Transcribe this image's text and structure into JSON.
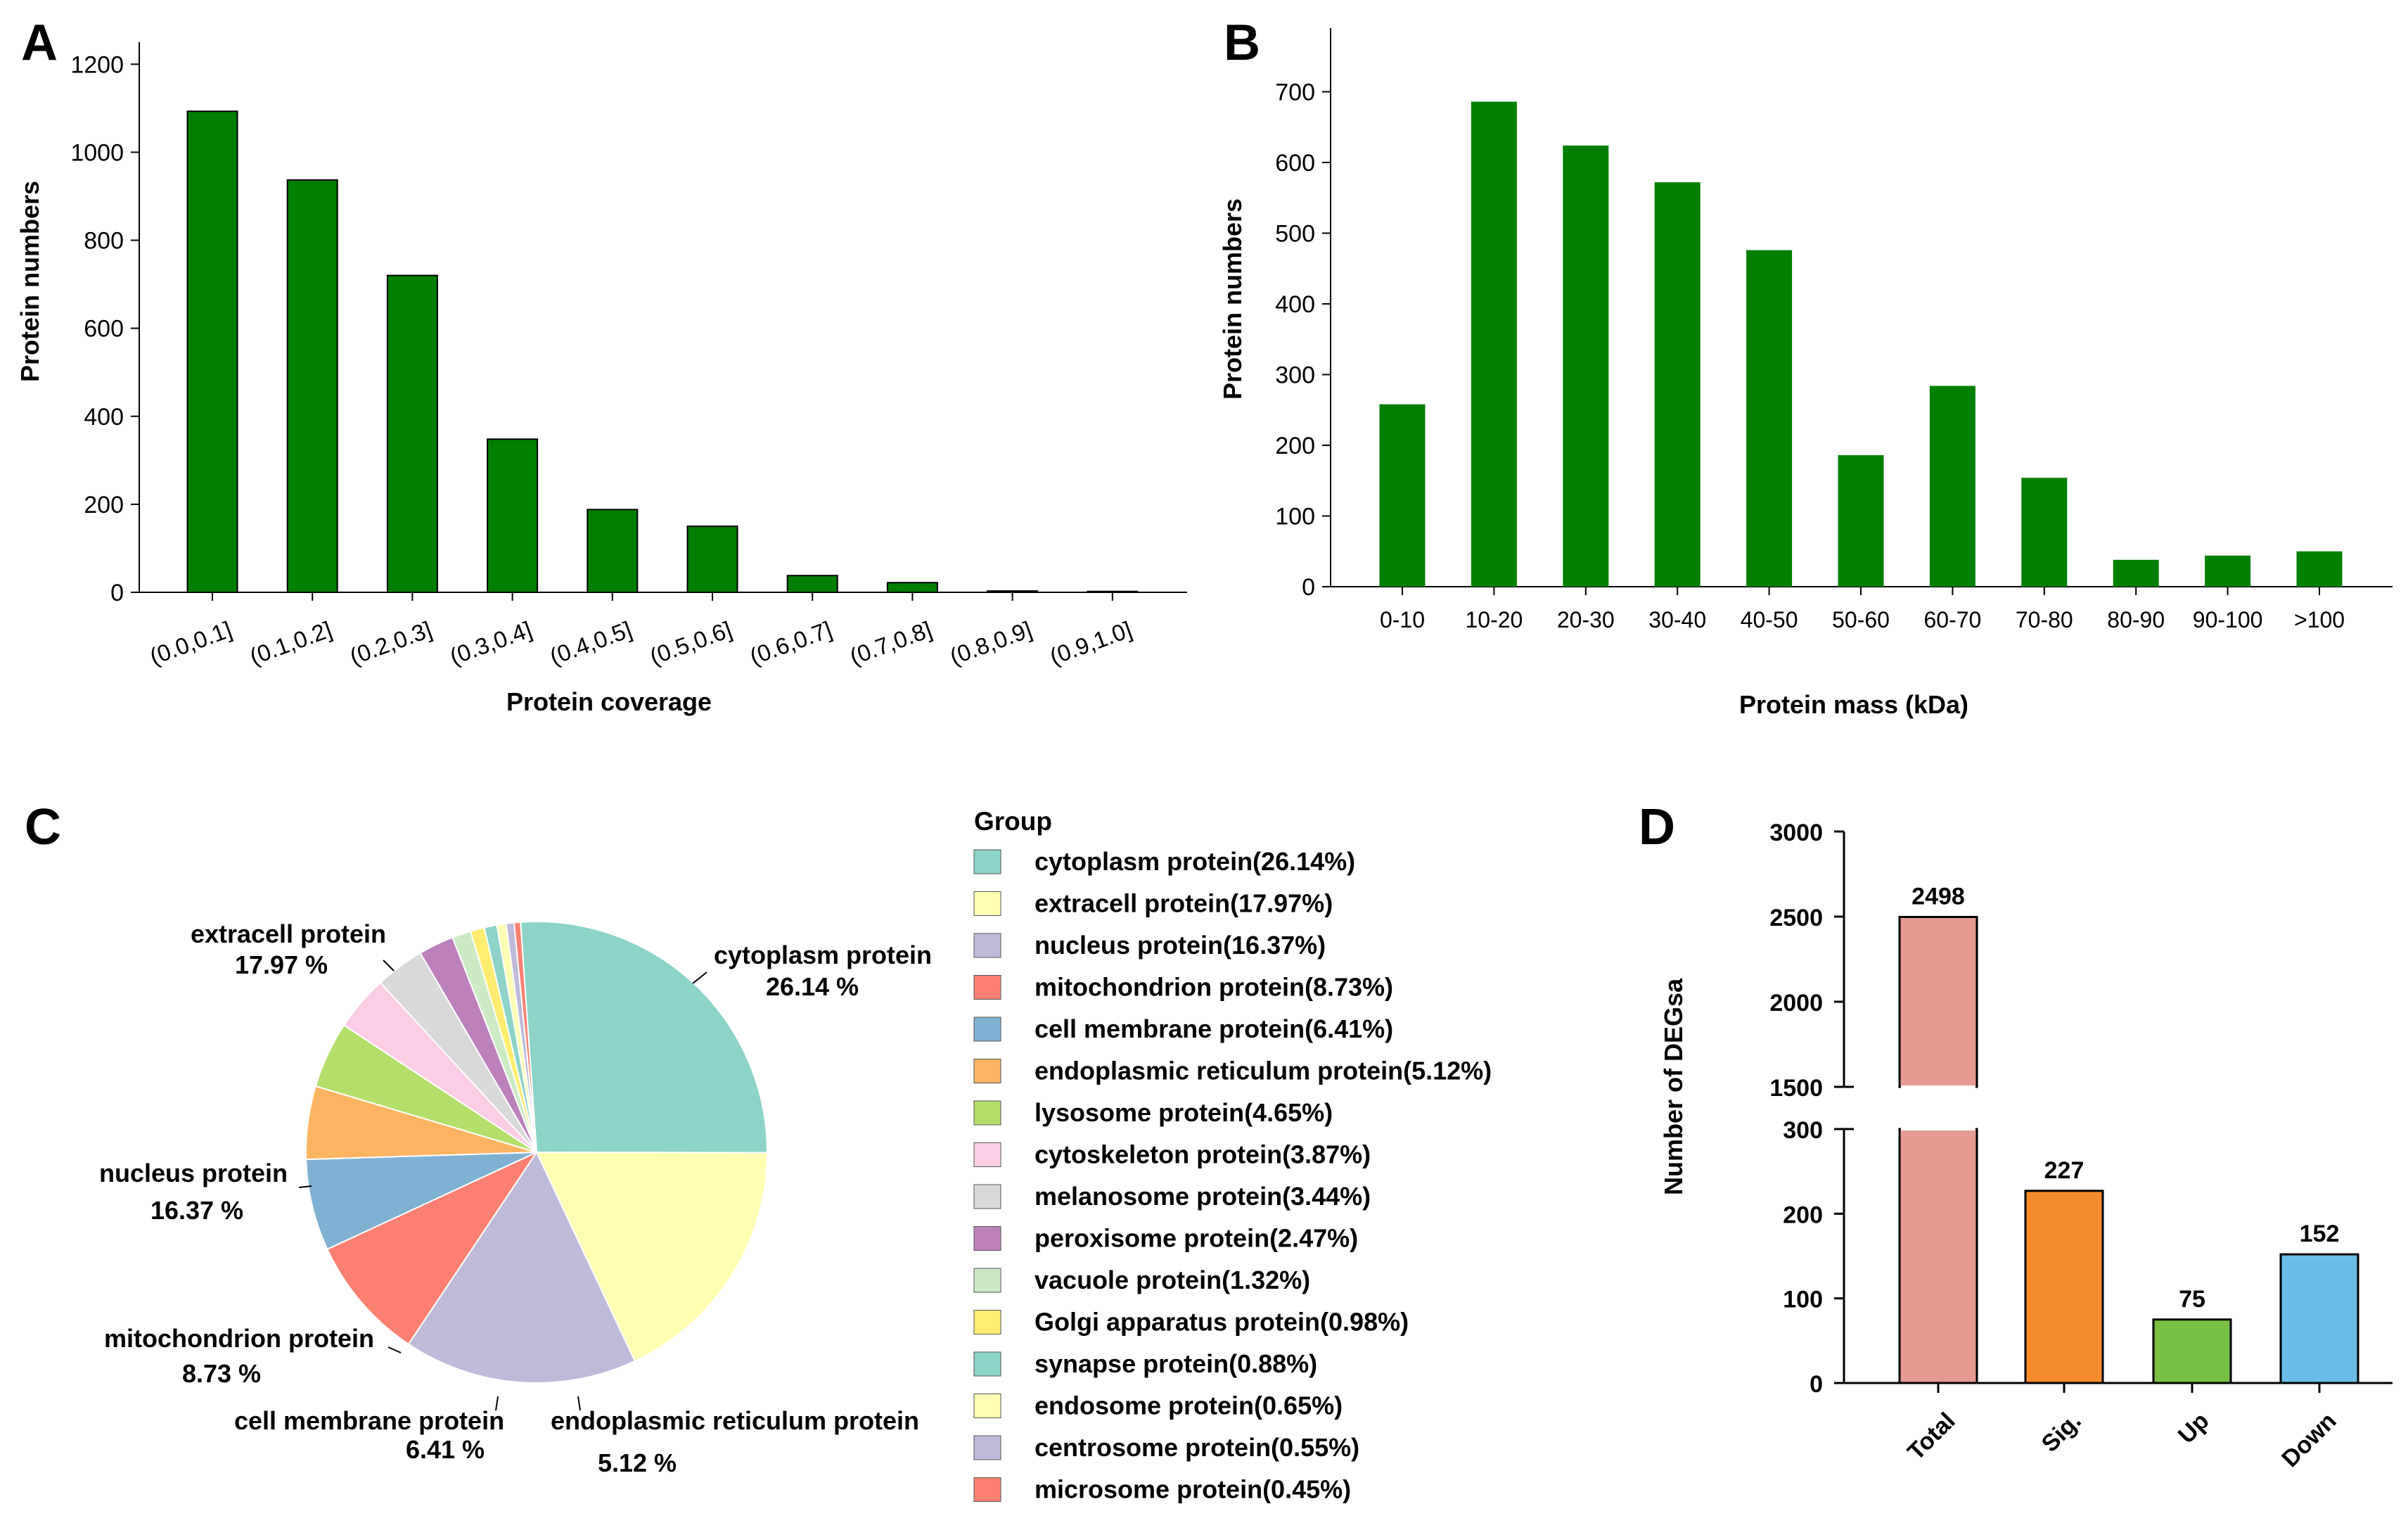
{
  "panel_letters": [
    "A",
    "B",
    "C",
    "D"
  ],
  "colors": {
    "green": "#007f00",
    "axis": "#000000"
  },
  "chart_data": [
    {
      "id": "A",
      "type": "bar",
      "title": "",
      "xlabel": "Protein coverage",
      "ylabel": "Protein numbers",
      "categories": [
        "(0.0,0.1]",
        "(0.1,0.2]",
        "(0.2,0.3]",
        "(0.3,0.4]",
        "(0.4,0.5]",
        "(0.5,0.6]",
        "(0.6,0.7]",
        "(0.7,0.8]",
        "(0.8,0.9]",
        "(0.9,1.0]"
      ],
      "values": [
        1093,
        937,
        720,
        348,
        188,
        150,
        38,
        22,
        3,
        2
      ],
      "ylim": [
        0,
        1250
      ],
      "yticks": [
        "0",
        "200",
        "400",
        "600",
        "800",
        "1000",
        "1200"
      ],
      "color": "#007f00"
    },
    {
      "id": "B",
      "type": "bar",
      "title": "",
      "xlabel": "Protein mass (kDa)",
      "ylabel": "Protein numbers",
      "categories": [
        "0-10",
        "10-20",
        "20-30",
        "30-40",
        "40-50",
        "50-60",
        "60-70",
        "70-80",
        "80-90",
        "90-100",
        ">100"
      ],
      "values": [
        258,
        686,
        624,
        572,
        476,
        186,
        284,
        154,
        38,
        44,
        50
      ],
      "ylim": [
        0,
        790
      ],
      "yticks": [
        "0",
        "100",
        "200",
        "300",
        "400",
        "500",
        "600",
        "700"
      ],
      "color": "#007f00"
    },
    {
      "id": "C",
      "type": "pie",
      "legend_title": "Group",
      "series": [
        {
          "name": "cytoplasm protein",
          "value": 26.14,
          "legend": "cytoplasm protein(26.14%)",
          "color": "#8dd3c7",
          "label_pct": "26.14 %"
        },
        {
          "name": "extracell protein",
          "value": 17.97,
          "legend": "extracell protein(17.97%)",
          "color": "#ffffb3",
          "label_pct": "17.97 %"
        },
        {
          "name": "nucleus protein",
          "value": 16.37,
          "legend": "nucleus protein(16.37%)",
          "color": "#bebada",
          "label_pct": "16.37 %"
        },
        {
          "name": "mitochondrion protein",
          "value": 8.73,
          "legend": "mitochondrion protein(8.73%)",
          "color": "#fb8072",
          "label_pct": "8.73 %"
        },
        {
          "name": "cell membrane protein",
          "value": 6.41,
          "legend": "cell membrane protein(6.41%)",
          "color": "#80b1d3",
          "label_pct": "6.41 %"
        },
        {
          "name": "endoplasmic reticulum protein",
          "value": 5.12,
          "legend": "endoplasmic reticulum protein(5.12%)",
          "color": "#fdb462",
          "label_pct": "5.12 %"
        },
        {
          "name": "lysosome protein",
          "value": 4.65,
          "legend": "lysosome protein(4.65%)",
          "color": "#b3de69",
          "label_pct": ""
        },
        {
          "name": "cytoskeleton protein",
          "value": 3.87,
          "legend": "cytoskeleton protein(3.87%)",
          "color": "#fccde5",
          "label_pct": ""
        },
        {
          "name": "melanosome protein",
          "value": 3.44,
          "legend": "melanosome protein(3.44%)",
          "color": "#d9d9d9",
          "label_pct": ""
        },
        {
          "name": "peroxisome protein",
          "value": 2.47,
          "legend": "peroxisome protein(2.47%)",
          "color": "#bc80bd",
          "label_pct": ""
        },
        {
          "name": "vacuole protein",
          "value": 1.32,
          "legend": "vacuole protein(1.32%)",
          "color": "#ccebc5",
          "label_pct": ""
        },
        {
          "name": "Golgi apparatus protein",
          "value": 0.98,
          "legend": "Golgi apparatus protein(0.98%)",
          "color": "#ffed6f",
          "label_pct": ""
        },
        {
          "name": "synapse protein",
          "value": 0.88,
          "legend": "synapse protein(0.88%)",
          "color": "#8dd3c7",
          "label_pct": ""
        },
        {
          "name": "endosome protein",
          "value": 0.65,
          "legend": "endosome protein(0.65%)",
          "color": "#ffffb3",
          "label_pct": ""
        },
        {
          "name": "centrosome protein",
          "value": 0.55,
          "legend": "centrosome protein(0.55%)",
          "color": "#bebada",
          "label_pct": ""
        },
        {
          "name": "microsome protein",
          "value": 0.45,
          "legend": "microsome protein(0.45%)",
          "color": "#fb8072",
          "label_pct": ""
        }
      ]
    },
    {
      "id": "D",
      "type": "bar",
      "title": "",
      "xlabel": "",
      "ylabel": "Number of DEGsa",
      "categories": [
        "Total",
        "Sig.",
        "Up",
        "Down"
      ],
      "values": [
        2498,
        227,
        75,
        152
      ],
      "value_labels": [
        "2498",
        "227",
        "75",
        "152"
      ],
      "colors": [
        "#e59a94",
        "#f38b2c",
        "#79bf43",
        "#6bbde8"
      ],
      "broken_axis": {
        "lower": [
          0,
          300
        ],
        "upper": [
          1500,
          3000
        ]
      },
      "yticks_lower": [
        "0",
        "100",
        "200",
        "300"
      ],
      "yticks_upper": [
        "1500",
        "2000",
        "2500",
        "3000"
      ]
    }
  ]
}
